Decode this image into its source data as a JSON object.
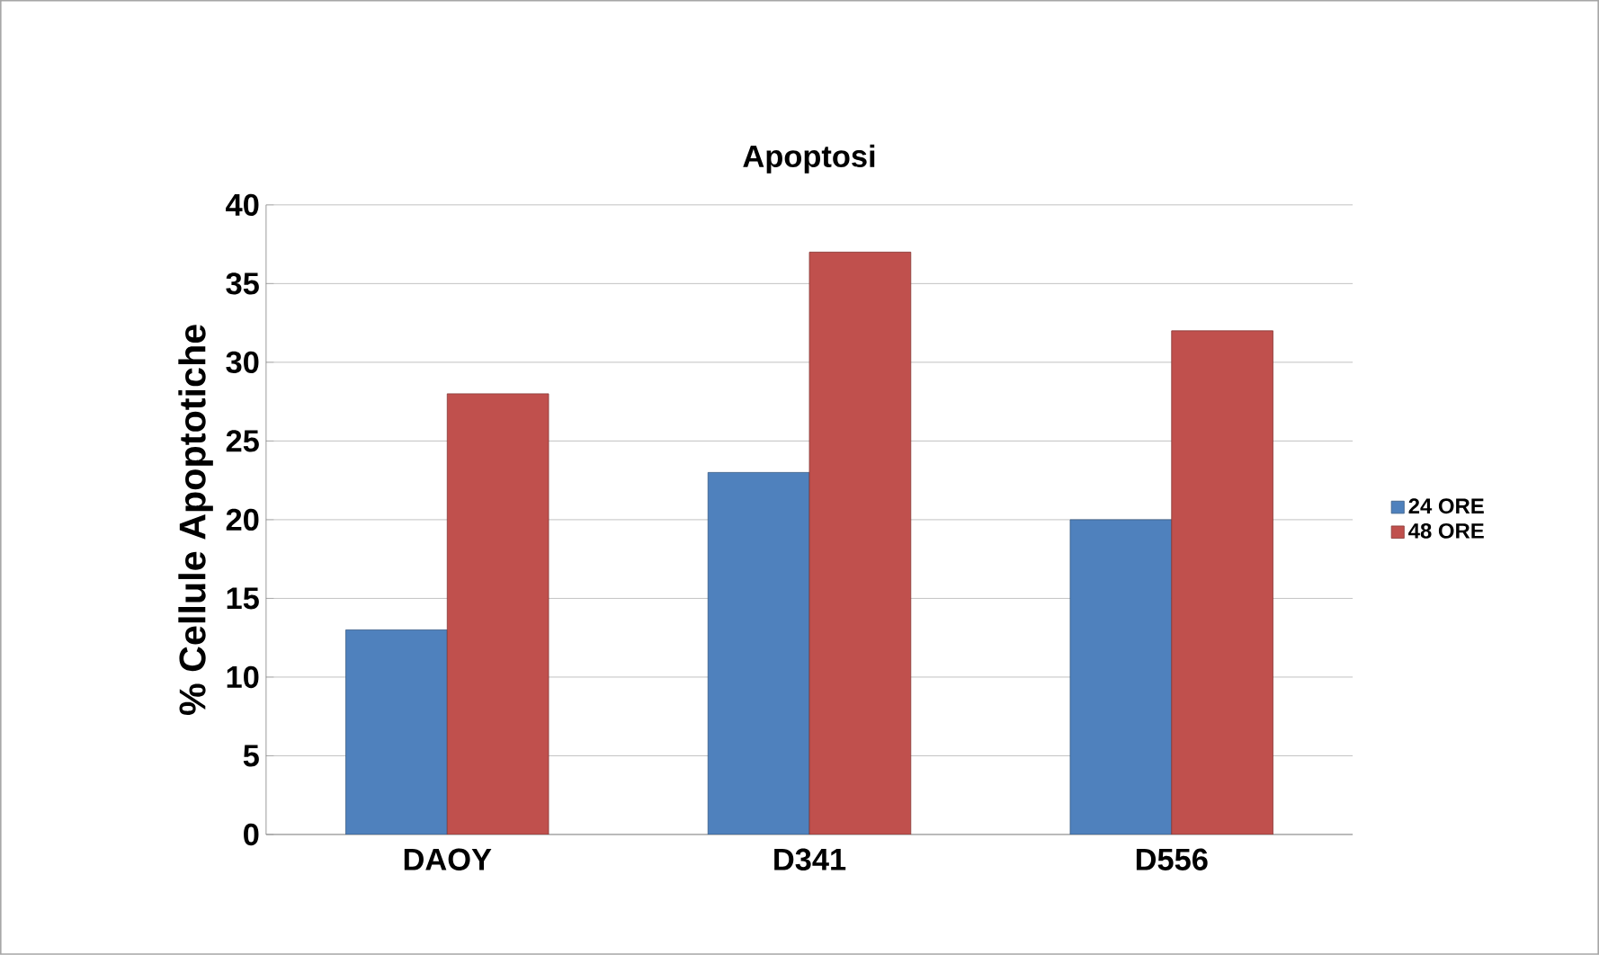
{
  "chart_data": {
    "type": "bar",
    "title": "Apoptosi",
    "ylabel": "% Cellule Apoptotiche",
    "categories": [
      "DAOY",
      "D341",
      "D556"
    ],
    "series": [
      {
        "name": "24 ORE",
        "color": "#4f81bd",
        "values": [
          13,
          23,
          20
        ]
      },
      {
        "name": "48 ORE",
        "color": "#c0504d",
        "values": [
          28,
          37,
          32
        ]
      }
    ],
    "ylim": [
      0,
      40
    ],
    "yticks": [
      0,
      5,
      10,
      15,
      20,
      25,
      30,
      35,
      40
    ],
    "grid": "y",
    "legend": "right"
  }
}
